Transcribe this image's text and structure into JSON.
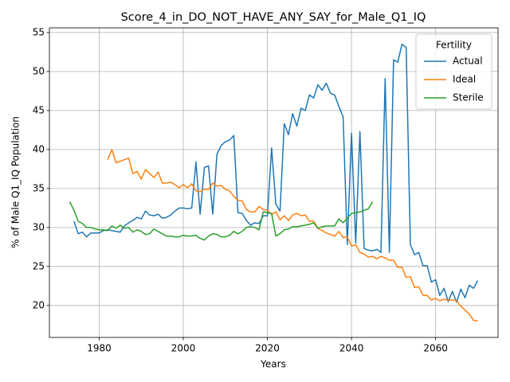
{
  "chart_data": {
    "type": "line",
    "title": "Score_4_in_DO_NOT_HAVE_ANY_SAY_for_Male_Q1_IQ",
    "x_label": "Years",
    "y_label": "% of Male Q1_IQ Population",
    "x": [
      1973,
      1974,
      1975,
      1976,
      1977,
      1978,
      1979,
      1980,
      1981,
      1982,
      1983,
      1984,
      1985,
      1986,
      1987,
      1988,
      1989,
      1990,
      1991,
      1992,
      1993,
      1994,
      1995,
      1996,
      1997,
      1998,
      1999,
      2000,
      2001,
      2002,
      2003,
      2004,
      2005,
      2006,
      2007,
      2008,
      2009,
      2010,
      2011,
      2012,
      2013,
      2014,
      2015,
      2016,
      2017,
      2018,
      2019,
      2020,
      2021,
      2022,
      2023,
      2024,
      2025,
      2026,
      2027,
      2028,
      2029,
      2030,
      2031,
      2032,
      2033,
      2034,
      2035,
      2036,
      2037,
      2038,
      2039,
      2040,
      2041,
      2042,
      2043,
      2044,
      2045,
      2046,
      2047,
      2048,
      2049,
      2050,
      2051,
      2052,
      2053,
      2054,
      2055,
      2056,
      2057,
      2058,
      2059,
      2060,
      2061,
      2062,
      2063,
      2064,
      2065,
      2066,
      2067,
      2068,
      2069,
      2070
    ],
    "series": [
      {
        "name": "Actual",
        "color": "#1f77b4",
        "values": [
          null,
          30.8,
          29.2,
          29.4,
          28.8,
          29.3,
          29.3,
          29.3,
          29.6,
          29.7,
          29.6,
          29.5,
          29.4,
          30.2,
          30.6,
          30.9,
          31.3,
          31.1,
          32.1,
          31.6,
          31.5,
          31.7,
          31.2,
          31.3,
          31.6,
          32.1,
          32.5,
          32.5,
          32.4,
          32.5,
          38.4,
          31.7,
          37.7,
          37.9,
          31.7,
          39.4,
          40.5,
          41.0,
          41.2,
          41.8,
          31.9,
          31.8,
          30.9,
          30.3,
          30.6,
          30.5,
          31.5,
          31.5,
          40.2,
          33.0,
          32.1,
          43.3,
          41.9,
          44.6,
          43.0,
          45.3,
          45.0,
          47.0,
          46.6,
          48.3,
          47.6,
          48.5,
          47.2,
          47.0,
          45.5,
          44.2,
          27.8,
          42.1,
          28.0,
          42.3,
          27.3,
          27.1,
          27.0,
          27.2,
          26.8,
          49.1,
          26.8,
          51.5,
          51.2,
          53.5,
          53.1,
          27.8,
          26.5,
          26.8,
          25.1,
          25.1,
          23.0,
          23.3,
          21.3,
          22.2,
          20.5,
          21.8,
          20.4,
          22.1,
          21.0,
          22.6,
          22.2,
          23.2
        ]
      },
      {
        "name": "Ideal",
        "color": "#ff7f0e",
        "values": [
          null,
          null,
          null,
          null,
          null,
          null,
          null,
          null,
          null,
          38.7,
          40.0,
          38.3,
          38.5,
          38.7,
          38.9,
          36.9,
          37.2,
          36.2,
          37.4,
          36.9,
          36.4,
          37.1,
          35.7,
          35.7,
          35.8,
          35.5,
          35.1,
          35.5,
          35.1,
          35.6,
          34.7,
          34.6,
          34.9,
          34.9,
          35.7,
          35.3,
          35.4,
          34.9,
          34.7,
          34.0,
          33.5,
          33.4,
          32.3,
          32.0,
          32.0,
          32.7,
          32.3,
          32.2,
          31.7,
          32.0,
          31.0,
          31.5,
          30.9,
          31.6,
          31.8,
          31.5,
          31.6,
          30.8,
          30.8,
          29.9,
          29.6,
          29.3,
          29.1,
          28.9,
          29.5,
          28.7,
          28.8,
          27.6,
          27.8,
          26.8,
          26.6,
          26.2,
          26.3,
          26.0,
          26.3,
          26.1,
          25.8,
          25.8,
          24.9,
          24.9,
          23.6,
          23.7,
          22.3,
          22.4,
          21.3,
          21.3,
          20.7,
          20.9,
          20.6,
          20.8,
          20.7,
          20.7,
          20.6,
          19.9,
          19.4,
          18.9,
          18.1,
          18.0
        ]
      },
      {
        "name": "Sterile",
        "color": "#2ca02c",
        "values": [
          33.3,
          32.2,
          30.8,
          30.5,
          30.0,
          30.0,
          29.8,
          29.7,
          29.7,
          29.6,
          30.2,
          29.9,
          30.3,
          29.9,
          30.0,
          29.4,
          29.7,
          29.5,
          29.1,
          29.2,
          29.8,
          29.5,
          29.2,
          28.9,
          28.9,
          28.8,
          28.8,
          29.0,
          28.9,
          28.9,
          29.0,
          28.6,
          28.4,
          28.9,
          29.2,
          29.1,
          28.8,
          28.8,
          29.0,
          29.5,
          29.2,
          29.5,
          30.0,
          30.1,
          30.0,
          29.7,
          32.0,
          31.9,
          31.8,
          28.9,
          29.2,
          29.7,
          29.8,
          30.1,
          30.1,
          30.2,
          30.3,
          30.4,
          30.6,
          29.9,
          30.1,
          30.2,
          30.2,
          30.2,
          31.1,
          30.6,
          31.2,
          31.8,
          31.9,
          32.0,
          32.2,
          32.4,
          33.3,
          null,
          null,
          null,
          null,
          null,
          null,
          null,
          null,
          null,
          null,
          null,
          null,
          null,
          null,
          null,
          null,
          null,
          null,
          null,
          null,
          null,
          null,
          null,
          null,
          null
        ]
      }
    ],
    "xlim": [
      1968.15,
      2074.85
    ],
    "ylim": [
      15.9,
      55.6
    ],
    "xticks": [
      1980,
      2000,
      2020,
      2040,
      2060
    ],
    "yticks": [
      20,
      25,
      30,
      35,
      40,
      45,
      50,
      55
    ],
    "grid": true,
    "legend_title": "Fertility",
    "legend_loc": "upper right"
  }
}
